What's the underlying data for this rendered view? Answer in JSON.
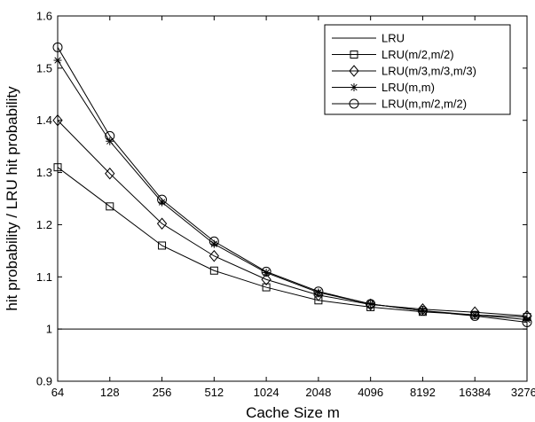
{
  "chart_data": {
    "type": "line",
    "title": "",
    "xlabel": "Cache Size m",
    "ylabel": "hit probability / LRU hit probability",
    "x": [
      64,
      128,
      256,
      512,
      1024,
      2048,
      4096,
      8192,
      16384,
      32768
    ],
    "x_tick_labels": [
      "64",
      "128",
      "256",
      "512",
      "1024",
      "2048",
      "4096",
      "8192",
      "16384",
      "32768"
    ],
    "x_scale": "log2",
    "ylim": [
      0.9,
      1.6
    ],
    "y_ticks": [
      0.9,
      1,
      1.1,
      1.2,
      1.3,
      1.4,
      1.5,
      1.6
    ],
    "y_tick_labels": [
      "0.9",
      "1",
      "1.1",
      "1.2",
      "1.3",
      "1.4",
      "1.5",
      "1.6"
    ],
    "grid": false,
    "legend_position": "top-right",
    "series": [
      {
        "name": "LRU",
        "marker": "none",
        "values": [
          1,
          1,
          1,
          1,
          1,
          1,
          1,
          1,
          1,
          1
        ]
      },
      {
        "name": "LRU(m/2,m/2)",
        "marker": "square",
        "values": [
          1.31,
          1.235,
          1.16,
          1.112,
          1.08,
          1.055,
          1.042,
          1.033,
          1.027,
          1.023
        ]
      },
      {
        "name": "LRU(m/3,m/3,m/3)",
        "marker": "diamond",
        "values": [
          1.4,
          1.298,
          1.202,
          1.14,
          1.095,
          1.065,
          1.047,
          1.038,
          1.032,
          1.025
        ]
      },
      {
        "name": "LRU(m,m)",
        "marker": "star",
        "values": [
          1.515,
          1.36,
          1.243,
          1.163,
          1.108,
          1.07,
          1.048,
          1.035,
          1.027,
          1.018
        ]
      },
      {
        "name": "LRU(m,m/2,m/2)",
        "marker": "circle",
        "values": [
          1.54,
          1.37,
          1.248,
          1.168,
          1.11,
          1.072,
          1.048,
          1.035,
          1.025,
          1.013
        ]
      }
    ]
  }
}
